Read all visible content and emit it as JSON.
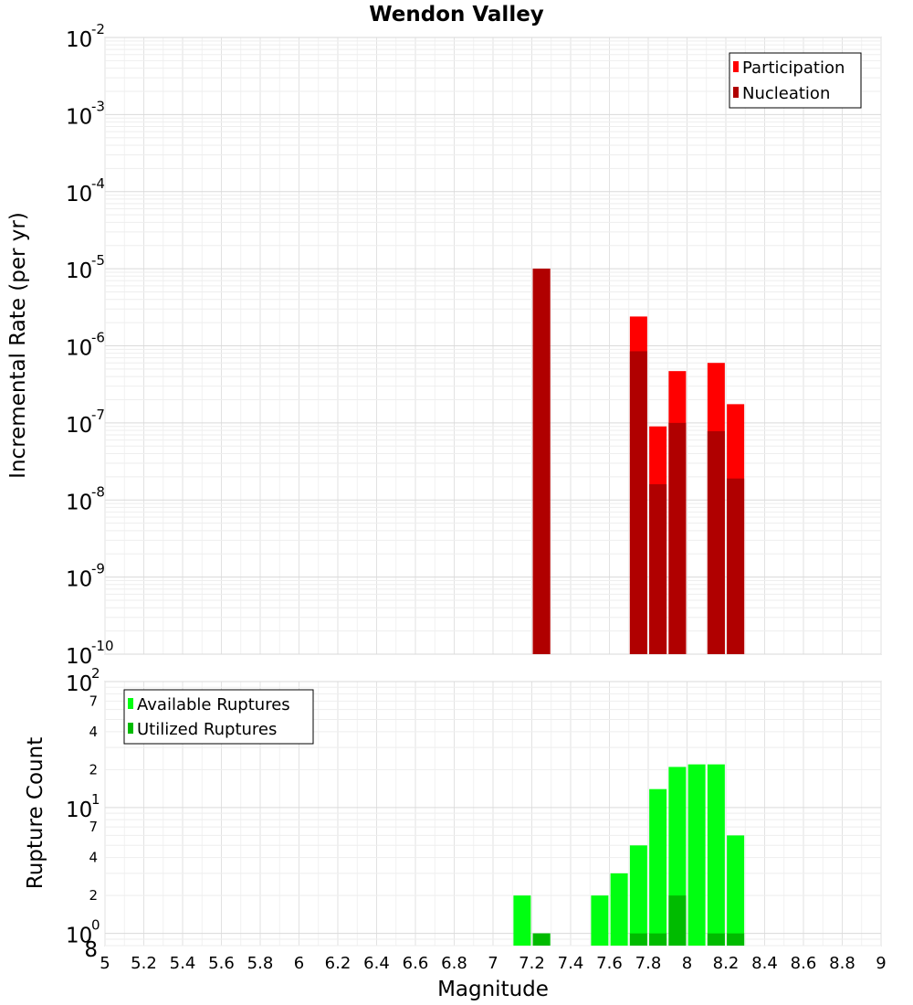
{
  "chart_data": [
    {
      "id": "rates",
      "type": "bar",
      "title": "Wendon Valley",
      "xlabel": "",
      "ylabel": "Incremental Rate (per yr)",
      "yscale": "log",
      "ylim": [
        1e-10,
        0.01
      ],
      "xlim": [
        5,
        9
      ],
      "y_ticks": [
        {
          "base": "10",
          "exp": "-2",
          "value": 0.01
        },
        {
          "base": "10",
          "exp": "-3",
          "value": 0.001
        },
        {
          "base": "10",
          "exp": "-4",
          "value": 0.0001
        },
        {
          "base": "10",
          "exp": "-5",
          "value": 1e-05
        },
        {
          "base": "10",
          "exp": "-6",
          "value": 1e-06
        },
        {
          "base": "10",
          "exp": "-7",
          "value": 1e-07
        },
        {
          "base": "10",
          "exp": "-8",
          "value": 1e-08
        },
        {
          "base": "10",
          "exp": "-9",
          "value": 1e-09
        },
        {
          "base": "10",
          "exp": "-10",
          "value": 1e-10
        }
      ],
      "legend_position": "top-right",
      "series": [
        {
          "name": "Participation",
          "color": "#ff0000",
          "points": [
            {
              "x": 7.25,
              "y": 1e-05
            },
            {
              "x": 7.75,
              "y": 2.4e-06
            },
            {
              "x": 7.85,
              "y": 9e-08
            },
            {
              "x": 7.95,
              "y": 4.7e-07
            },
            {
              "x": 8.15,
              "y": 6e-07
            },
            {
              "x": 8.25,
              "y": 1.75e-07
            }
          ]
        },
        {
          "name": "Nucleation",
          "color": "#b00000",
          "points": [
            {
              "x": 7.25,
              "y": 1e-05
            },
            {
              "x": 7.75,
              "y": 8.5e-07
            },
            {
              "x": 7.85,
              "y": 1.6e-08
            },
            {
              "x": 7.95,
              "y": 1e-07
            },
            {
              "x": 8.15,
              "y": 7.8e-08
            },
            {
              "x": 8.25,
              "y": 1.9e-08
            }
          ]
        }
      ]
    },
    {
      "id": "counts",
      "type": "bar",
      "title": "",
      "xlabel": "Magnitude",
      "ylabel": "Rupture Count",
      "yscale": "log",
      "ylim": [
        0.8,
        100
      ],
      "xlim": [
        5,
        9
      ],
      "x_ticks": [
        "5",
        "5.2",
        "5.4",
        "5.6",
        "5.8",
        "6",
        "6.2",
        "6.4",
        "6.6",
        "6.8",
        "7",
        "7.2",
        "7.4",
        "7.6",
        "7.8",
        "8",
        "8.2",
        "8.4",
        "8.6",
        "8.8",
        "9"
      ],
      "y_major_ticks": [
        {
          "base": "10",
          "exp": "2",
          "value": 100
        },
        {
          "base": "10",
          "exp": "1",
          "value": 10
        },
        {
          "base": "10",
          "exp": "0",
          "value": 1
        }
      ],
      "y_minor_ticks": [
        {
          "label": "7",
          "value": 70
        },
        {
          "label": "4",
          "value": 40
        },
        {
          "label": "2",
          "value": 20
        },
        {
          "label": "7",
          "value": 7
        },
        {
          "label": "4",
          "value": 4
        },
        {
          "label": "2",
          "value": 2
        },
        {
          "label": "8",
          "value": 0.8
        }
      ],
      "legend_position": "top-left",
      "series": [
        {
          "name": "Available Ruptures",
          "color": "#00ff11",
          "points": [
            {
              "x": 7.15,
              "y": 2
            },
            {
              "x": 7.25,
              "y": 1
            },
            {
              "x": 7.55,
              "y": 2
            },
            {
              "x": 7.65,
              "y": 3
            },
            {
              "x": 7.75,
              "y": 5
            },
            {
              "x": 7.85,
              "y": 14
            },
            {
              "x": 7.95,
              "y": 21
            },
            {
              "x": 8.05,
              "y": 22
            },
            {
              "x": 8.15,
              "y": 22
            },
            {
              "x": 8.25,
              "y": 6
            }
          ]
        },
        {
          "name": "Utilized Ruptures",
          "color": "#00bb00",
          "points": [
            {
              "x": 7.25,
              "y": 1
            },
            {
              "x": 7.75,
              "y": 1
            },
            {
              "x": 7.85,
              "y": 1
            },
            {
              "x": 7.95,
              "y": 2
            },
            {
              "x": 8.15,
              "y": 1
            },
            {
              "x": 8.25,
              "y": 1
            }
          ]
        }
      ]
    }
  ]
}
